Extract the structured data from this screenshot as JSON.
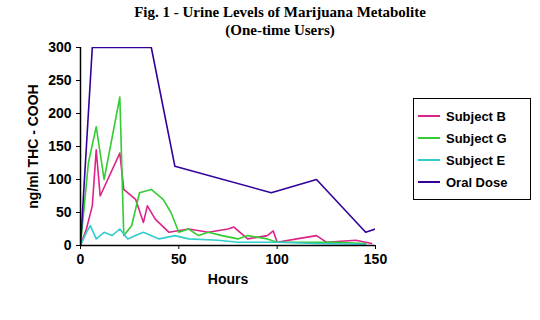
{
  "chart_data": {
    "type": "line",
    "title": "Fig. 1 - Urine Levels of Marijuana Metabolite",
    "subtitle": "(One-time Users)",
    "x_label": "Hours",
    "y_label": "ng/ml THC - COOH",
    "xlim": [
      0,
      150
    ],
    "xticks": [
      0,
      50,
      100,
      150
    ],
    "ylim": [
      0,
      300
    ],
    "yticks": [
      0,
      50,
      100,
      150,
      200,
      250,
      300
    ],
    "grid": false,
    "legend": "right",
    "series": [
      {
        "name": "Subject B",
        "color": "#dd2288",
        "x": [
          0,
          3,
          6,
          8,
          10,
          20,
          22,
          28,
          32,
          34,
          38,
          45,
          55,
          65,
          75,
          78,
          85,
          95,
          98,
          100,
          110,
          120,
          125,
          140,
          148
        ],
        "values": [
          0,
          25,
          60,
          145,
          75,
          140,
          85,
          70,
          35,
          60,
          40,
          20,
          25,
          20,
          25,
          28,
          10,
          15,
          22,
          5,
          10,
          15,
          5,
          8,
          3
        ]
      },
      {
        "name": "Subject G",
        "color": "#33cc33",
        "x": [
          0,
          4,
          8,
          12,
          20,
          22,
          26,
          30,
          36,
          42,
          46,
          50,
          55,
          60,
          65,
          72,
          80,
          85,
          95,
          100,
          120,
          130,
          145
        ],
        "values": [
          0,
          125,
          180,
          100,
          225,
          15,
          30,
          80,
          85,
          70,
          50,
          20,
          25,
          15,
          20,
          15,
          10,
          15,
          10,
          5,
          5,
          5,
          3
        ]
      },
      {
        "name": "Subject E",
        "color": "#33cccc",
        "x": [
          0,
          3,
          5,
          8,
          12,
          16,
          20,
          24,
          28,
          32,
          40,
          48,
          55,
          70,
          80,
          100,
          120,
          145
        ],
        "values": [
          0,
          20,
          30,
          10,
          20,
          15,
          25,
          10,
          15,
          20,
          10,
          15,
          10,
          8,
          5,
          5,
          3,
          2
        ]
      },
      {
        "name": "Oral Dose",
        "color": "#330099",
        "x": [
          0,
          6,
          36,
          48,
          97,
          120,
          145,
          150
        ],
        "values": [
          0,
          300,
          300,
          120,
          80,
          100,
          20,
          25
        ]
      }
    ]
  }
}
